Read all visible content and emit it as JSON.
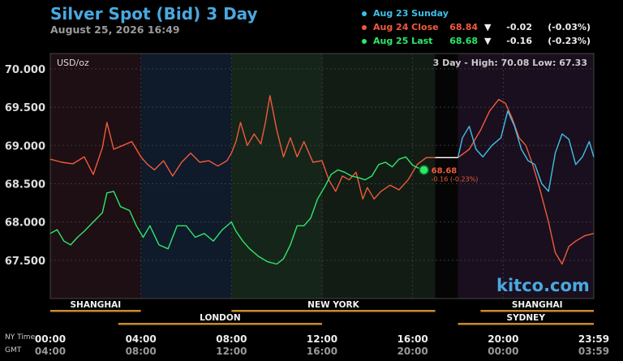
{
  "header": {
    "title": "Silver Spot (Bid) 3 Day",
    "date": "August 25, 2026 16:49"
  },
  "legend": [
    {
      "name": "Aug 23 Sunday",
      "value": "",
      "arrow": "",
      "change": "",
      "pct": "",
      "color": "#3fc0e8"
    },
    {
      "name": "Aug 24 Close",
      "value": "68.84",
      "arrow": "▼",
      "change": "-0.02",
      "pct": "(-0.03%)",
      "color": "#f05a3c"
    },
    {
      "name": "Aug 25 Last",
      "value": "68.68",
      "arrow": "▼",
      "change": "-0.16",
      "pct": "(-0.23%)",
      "color": "#2ee86a"
    }
  ],
  "watermark": "kitco.com",
  "timezones": {
    "ny": "NY Time",
    "gmt": "GMT"
  },
  "chart_data": {
    "type": "line",
    "unit_label": "USD/oz",
    "range_label": "3 Day - High: 70.08  Low: 67.33",
    "ylim": [
      67.0,
      70.2
    ],
    "yticks": [
      "70.000",
      "69.500",
      "69.000",
      "68.500",
      "68.000",
      "67.500"
    ],
    "xlim": [
      0,
      24
    ],
    "xticks": [
      {
        "ny": "00:00",
        "gmt": "04:00"
      },
      {
        "ny": "04:00",
        "gmt": "08:00"
      },
      {
        "ny": "08:00",
        "gmt": "12:00"
      },
      {
        "ny": "12:00",
        "gmt": "16:00"
      },
      {
        "ny": "16:00",
        "gmt": "20:00"
      },
      {
        "ny": "20:00",
        "gmt": "00:00"
      },
      {
        "ny": "23:59",
        "gmt": "03:59"
      }
    ],
    "sessions": [
      {
        "name": "SHANGHAI",
        "start": 0,
        "end": 4
      },
      {
        "name": "LONDON",
        "start": 3,
        "end": 12
      },
      {
        "name": "NEW YORK",
        "start": 8,
        "end": 17
      },
      {
        "name": "SHANGHAI",
        "start": 19,
        "end": 24
      },
      {
        "name": "SYDNEY",
        "start": 18,
        "end": 24
      }
    ],
    "last_point": {
      "x": 16.5,
      "y": 68.68,
      "label": "68.68",
      "change": "-0.16 (-0.23%)"
    },
    "series": [
      {
        "name": "Aug 24 Close",
        "color": "#f05a3c",
        "points": [
          [
            0,
            68.82
          ],
          [
            0.5,
            68.78
          ],
          [
            1.0,
            68.76
          ],
          [
            1.5,
            68.85
          ],
          [
            1.9,
            68.62
          ],
          [
            2.3,
            68.97
          ],
          [
            2.5,
            69.3
          ],
          [
            2.8,
            68.95
          ],
          [
            3.2,
            69.0
          ],
          [
            3.6,
            69.05
          ],
          [
            4.0,
            68.85
          ],
          [
            4.3,
            68.75
          ],
          [
            4.6,
            68.68
          ],
          [
            5.0,
            68.8
          ],
          [
            5.4,
            68.6
          ],
          [
            5.8,
            68.78
          ],
          [
            6.2,
            68.9
          ],
          [
            6.6,
            68.78
          ],
          [
            7.0,
            68.8
          ],
          [
            7.4,
            68.73
          ],
          [
            7.8,
            68.8
          ],
          [
            8.0,
            68.9
          ],
          [
            8.2,
            69.05
          ],
          [
            8.4,
            69.3
          ],
          [
            8.7,
            69.0
          ],
          [
            9.0,
            69.15
          ],
          [
            9.3,
            69.02
          ],
          [
            9.5,
            69.3
          ],
          [
            9.7,
            69.65
          ],
          [
            10.0,
            69.2
          ],
          [
            10.3,
            68.85
          ],
          [
            10.6,
            69.1
          ],
          [
            10.9,
            68.85
          ],
          [
            11.2,
            69.05
          ],
          [
            11.6,
            68.78
          ],
          [
            12.0,
            68.8
          ],
          [
            12.3,
            68.55
          ],
          [
            12.6,
            68.4
          ],
          [
            12.9,
            68.6
          ],
          [
            13.2,
            68.55
          ],
          [
            13.5,
            68.65
          ],
          [
            13.8,
            68.3
          ],
          [
            14.0,
            68.45
          ],
          [
            14.3,
            68.3
          ],
          [
            14.6,
            68.4
          ],
          [
            15.0,
            68.48
          ],
          [
            15.4,
            68.42
          ],
          [
            15.8,
            68.55
          ],
          [
            16.2,
            68.75
          ],
          [
            16.6,
            68.84
          ],
          [
            17.0,
            68.84
          ],
          [
            18.0,
            68.84
          ],
          [
            18.5,
            68.95
          ],
          [
            19.0,
            69.2
          ],
          [
            19.4,
            69.45
          ],
          [
            19.8,
            69.6
          ],
          [
            20.1,
            69.55
          ],
          [
            20.4,
            69.35
          ],
          [
            20.7,
            69.1
          ],
          [
            21.0,
            69.0
          ],
          [
            21.3,
            68.75
          ],
          [
            21.6,
            68.45
          ],
          [
            22.0,
            68.0
          ],
          [
            22.3,
            67.6
          ],
          [
            22.6,
            67.45
          ],
          [
            22.9,
            67.68
          ],
          [
            23.2,
            67.75
          ],
          [
            23.6,
            67.82
          ],
          [
            24.0,
            67.85
          ]
        ]
      },
      {
        "name": "Aug 25 Last",
        "color": "#2ee86a",
        "points": [
          [
            0,
            67.85
          ],
          [
            0.3,
            67.9
          ],
          [
            0.6,
            67.75
          ],
          [
            0.9,
            67.7
          ],
          [
            1.2,
            67.8
          ],
          [
            1.5,
            67.88
          ],
          [
            1.9,
            68.0
          ],
          [
            2.3,
            68.12
          ],
          [
            2.5,
            68.38
          ],
          [
            2.8,
            68.4
          ],
          [
            3.1,
            68.2
          ],
          [
            3.5,
            68.15
          ],
          [
            3.8,
            67.95
          ],
          [
            4.1,
            67.8
          ],
          [
            4.4,
            67.95
          ],
          [
            4.8,
            67.7
          ],
          [
            5.2,
            67.65
          ],
          [
            5.6,
            67.95
          ],
          [
            6.0,
            67.95
          ],
          [
            6.4,
            67.8
          ],
          [
            6.8,
            67.85
          ],
          [
            7.2,
            67.75
          ],
          [
            7.6,
            67.9
          ],
          [
            8.0,
            68.0
          ],
          [
            8.2,
            67.88
          ],
          [
            8.5,
            67.75
          ],
          [
            8.8,
            67.65
          ],
          [
            9.2,
            67.55
          ],
          [
            9.6,
            67.48
          ],
          [
            10.0,
            67.45
          ],
          [
            10.3,
            67.52
          ],
          [
            10.6,
            67.7
          ],
          [
            10.9,
            67.95
          ],
          [
            11.2,
            67.95
          ],
          [
            11.5,
            68.05
          ],
          [
            11.8,
            68.3
          ],
          [
            12.1,
            68.45
          ],
          [
            12.4,
            68.62
          ],
          [
            12.7,
            68.68
          ],
          [
            13.0,
            68.65
          ],
          [
            13.3,
            68.6
          ],
          [
            13.6,
            68.58
          ],
          [
            13.9,
            68.55
          ],
          [
            14.2,
            68.6
          ],
          [
            14.5,
            68.75
          ],
          [
            14.8,
            68.78
          ],
          [
            15.1,
            68.72
          ],
          [
            15.4,
            68.82
          ],
          [
            15.7,
            68.85
          ],
          [
            16.0,
            68.74
          ],
          [
            16.3,
            68.7
          ],
          [
            16.5,
            68.68
          ]
        ]
      },
      {
        "name": "Aug 23 Sunday",
        "color": "#3fc0e8",
        "points": [
          [
            18.0,
            68.84
          ],
          [
            18.2,
            69.1
          ],
          [
            18.5,
            69.25
          ],
          [
            18.8,
            68.95
          ],
          [
            19.1,
            68.85
          ],
          [
            19.5,
            69.0
          ],
          [
            19.9,
            69.1
          ],
          [
            20.2,
            69.45
          ],
          [
            20.5,
            69.25
          ],
          [
            20.8,
            68.95
          ],
          [
            21.1,
            68.8
          ],
          [
            21.4,
            68.75
          ],
          [
            21.7,
            68.5
          ],
          [
            22.0,
            68.4
          ],
          [
            22.3,
            68.9
          ],
          [
            22.6,
            69.15
          ],
          [
            22.9,
            69.08
          ],
          [
            23.2,
            68.75
          ],
          [
            23.5,
            68.85
          ],
          [
            23.8,
            69.05
          ],
          [
            24.0,
            68.85
          ]
        ]
      }
    ]
  }
}
